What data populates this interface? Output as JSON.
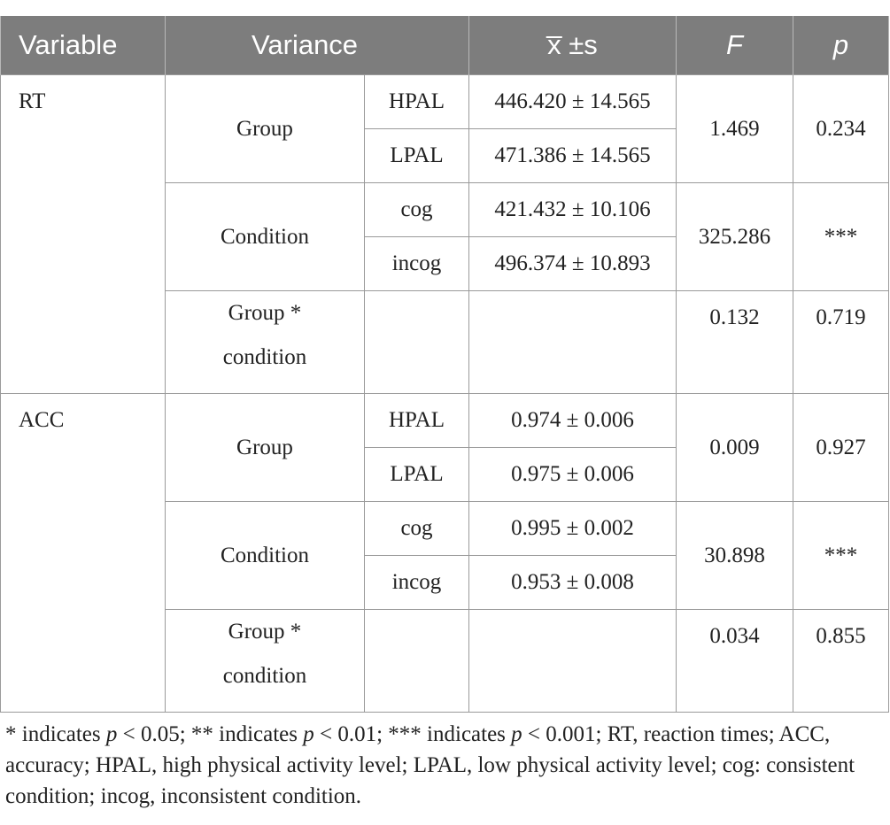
{
  "table": {
    "headers": {
      "variable": "Variable",
      "variance": "Variance",
      "mean_sd": "x̅ ±s",
      "f": "F",
      "p": "p"
    },
    "variables": [
      {
        "name": "RT",
        "group": {
          "label": "Group",
          "rows": [
            {
              "level": "HPAL",
              "value": "446.420 ± 14.565"
            },
            {
              "level": "LPAL",
              "value": "471.386 ± 14.565"
            }
          ],
          "f": "1.469",
          "p": "0.234"
        },
        "condition": {
          "label": "Condition",
          "rows": [
            {
              "level": "cog",
              "value": "421.432 ± 10.106"
            },
            {
              "level": "incog",
              "value": "496.374 ± 10.893"
            }
          ],
          "f": "325.286",
          "p": "***"
        },
        "interaction": {
          "label_line1": "Group *",
          "label_line2": "condition",
          "f": "0.132",
          "p": "0.719"
        }
      },
      {
        "name": "ACC",
        "group": {
          "label": "Group",
          "rows": [
            {
              "level": "HPAL",
              "value": "0.974 ± 0.006"
            },
            {
              "level": "LPAL",
              "value": "0.975 ± 0.006"
            }
          ],
          "f": "0.009",
          "p": "0.927"
        },
        "condition": {
          "label": "Condition",
          "rows": [
            {
              "level": "cog",
              "value": "0.995 ± 0.002"
            },
            {
              "level": "incog",
              "value": "0.953 ± 0.008"
            }
          ],
          "f": "30.898",
          "p": "***"
        },
        "interaction": {
          "label_line1": "Group *",
          "label_line2": "condition",
          "f": "0.034",
          "p": "0.855"
        }
      }
    ]
  },
  "footnote": {
    "part1": "* indicates ",
    "p1": "p",
    "part2": " < 0.05; ** indicates ",
    "p2": "p",
    "part3": " < 0.01; *** indicates ",
    "p3": "p",
    "part4": " < 0.001; RT, reaction times; ACC, accuracy; HPAL, high physical activity level; LPAL, low physical activity level; cog: consistent condition; incog, inconsistent condition."
  },
  "colors": {
    "header_bg": "#7d7d7d",
    "header_text": "#ffffff",
    "border": "#9a9a9a"
  }
}
